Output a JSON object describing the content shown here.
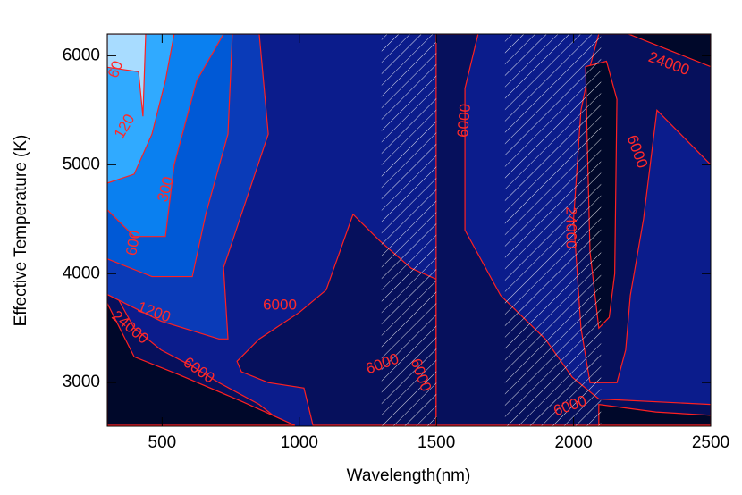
{
  "chart_data": {
    "type": "contour",
    "xlabel": "Wavelength(nm)",
    "ylabel": "Effective Temperature (K)",
    "xlim": [
      300,
      2500
    ],
    "xticks": [
      500,
      1000,
      1500,
      2000,
      2500
    ],
    "ylim": [
      2600,
      6200
    ],
    "yticks": [
      3000,
      4000,
      5000,
      6000
    ],
    "background": "#0b1c8c",
    "line_color": "#ff2020",
    "hatched_ranges": [
      [
        1300,
        1500
      ],
      [
        1750,
        2100
      ]
    ],
    "contours": [
      {
        "level": 6000,
        "color": "#06105c",
        "x": [
          300,
          398,
          496,
          610,
          707,
          854,
          950,
          300
        ],
        "y": [
          3950,
          3500,
          3300,
          3150,
          3000,
          2800,
          2608,
          2608
        ]
      },
      {
        "level": 6000,
        "color": "#06105c",
        "x": [
          773,
          854,
          1001,
          1098,
          1196,
          1294,
          1408,
          1499,
          1499,
          1050,
          1017,
          887,
          789
        ],
        "y": [
          3196,
          3401,
          3646,
          3850,
          4545,
          4300,
          4050,
          3950,
          2608,
          2608,
          2950,
          3000,
          3100
        ]
      },
      {
        "level": 6000,
        "color": "#06105c",
        "x": [
          1499,
          1652,
          1604,
          1604,
          1734,
          1897,
          1995,
          2092,
          2500,
          2500,
          1499
        ],
        "y": [
          6200,
          6200,
          5700,
          4400,
          3800,
          3400,
          3050,
          2850,
          2800,
          2608,
          2608
        ]
      },
      {
        "level": 6000,
        "color": "#06105c",
        "x": [
          2092,
          2500,
          2500,
          2304,
          2255,
          2207,
          2190,
          2158,
          2060,
          2027,
          2000,
          2027,
          2060
        ],
        "y": [
          6200,
          6200,
          5000,
          5500,
          4500,
          3800,
          3300,
          3000,
          3000,
          3500,
          4500,
          5500,
          5900
        ]
      },
      {
        "level": 24000,
        "color": "#00082a",
        "x": [
          300,
          398,
          560,
          789,
          984,
          300
        ],
        "y": [
          3728,
          3237,
          3074,
          2829,
          2608,
          2608
        ]
      },
      {
        "level": 24000,
        "color": "#00082a",
        "x": [
          2200,
          2500,
          2500,
          2350
        ],
        "y": [
          6200,
          6200,
          5900,
          6050
        ]
      },
      {
        "level": 24000,
        "color": "#00082a",
        "x": [
          2044,
          2120,
          2158,
          2150,
          2130,
          2092,
          2060,
          2050
        ],
        "y": [
          5900,
          5950,
          5600,
          4000,
          3600,
          3500,
          4200,
          5200
        ]
      },
      {
        "level": 24000,
        "color": "#00082a",
        "x": [
          2092,
          2300,
          2500,
          2500,
          2092
        ],
        "y": [
          2800,
          2730,
          2700,
          2608,
          2608
        ]
      },
      {
        "level": 1200,
        "color": "#0a3bb8",
        "x": [
          300,
          300,
          496,
          707,
          740,
          724,
          789,
          887,
          854
        ],
        "y": [
          6200,
          3809,
          3564,
          3401,
          3401,
          4055,
          4545,
          5281,
          6200
        ]
      },
      {
        "level": 600,
        "color": "#0059d6",
        "x": [
          300,
          300,
          463,
          610,
          659,
          740,
          756
        ],
        "y": [
          6200,
          4136,
          3973,
          3973,
          4545,
          5281,
          6200
        ]
      },
      {
        "level": 300,
        "color": "#0a80f0",
        "x": [
          300,
          300,
          398,
          512,
          544,
          626,
          724
        ],
        "y": [
          6200,
          4586,
          4341,
          4341,
          5000,
          5771,
          6200
        ]
      },
      {
        "level": 120,
        "color": "#30aaff",
        "x": [
          300,
          300,
          398,
          463,
          512,
          544
        ],
        "y": [
          6200,
          4831,
          4913,
          5281,
          5771,
          6200
        ]
      },
      {
        "level": 60,
        "color": "#a8dcff",
        "x": [
          300,
          300,
          414,
          430,
          440
        ],
        "y": [
          6200,
          5894,
          5853,
          5444,
          6200
        ]
      }
    ]
  }
}
